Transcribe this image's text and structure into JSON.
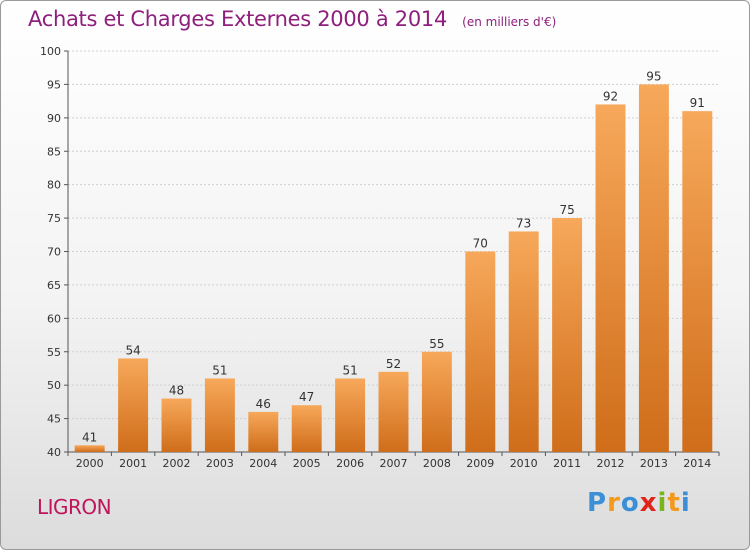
{
  "title": "Achats et Charges Externes 2000 à 2014",
  "subtitle": "(en milliers d'€)",
  "commune": "LIGRON",
  "logo": {
    "letters": [
      "P",
      "r",
      "o",
      "x",
      "i",
      "t",
      "i"
    ],
    "colors": [
      "#3a8fd6",
      "#f39a1e",
      "#3a8fd6",
      "#e2231a",
      "#7ab51d",
      "#f39a1e",
      "#3a8fd6"
    ]
  },
  "colors": {
    "bar_light": "#f7a85a",
    "bar_dark": "#cf6d1a",
    "title": "#8e1f7c",
    "commune": "#c0155a"
  },
  "chart_data": {
    "type": "bar",
    "title": "Achats et Charges Externes 2000 à 2014",
    "subtitle": "(en milliers d'€)",
    "categories": [
      "2000",
      "2001",
      "2002",
      "2003",
      "2004",
      "2005",
      "2006",
      "2007",
      "2008",
      "2009",
      "2010",
      "2011",
      "2012",
      "2013",
      "2014"
    ],
    "values": [
      41,
      54,
      48,
      51,
      46,
      47,
      51,
      52,
      55,
      70,
      73,
      75,
      92,
      95,
      91
    ],
    "ylim": [
      40,
      100
    ],
    "yticks": [
      40,
      45,
      50,
      55,
      60,
      65,
      70,
      75,
      80,
      85,
      90,
      95,
      100
    ],
    "grid": true,
    "data_labels": true
  }
}
